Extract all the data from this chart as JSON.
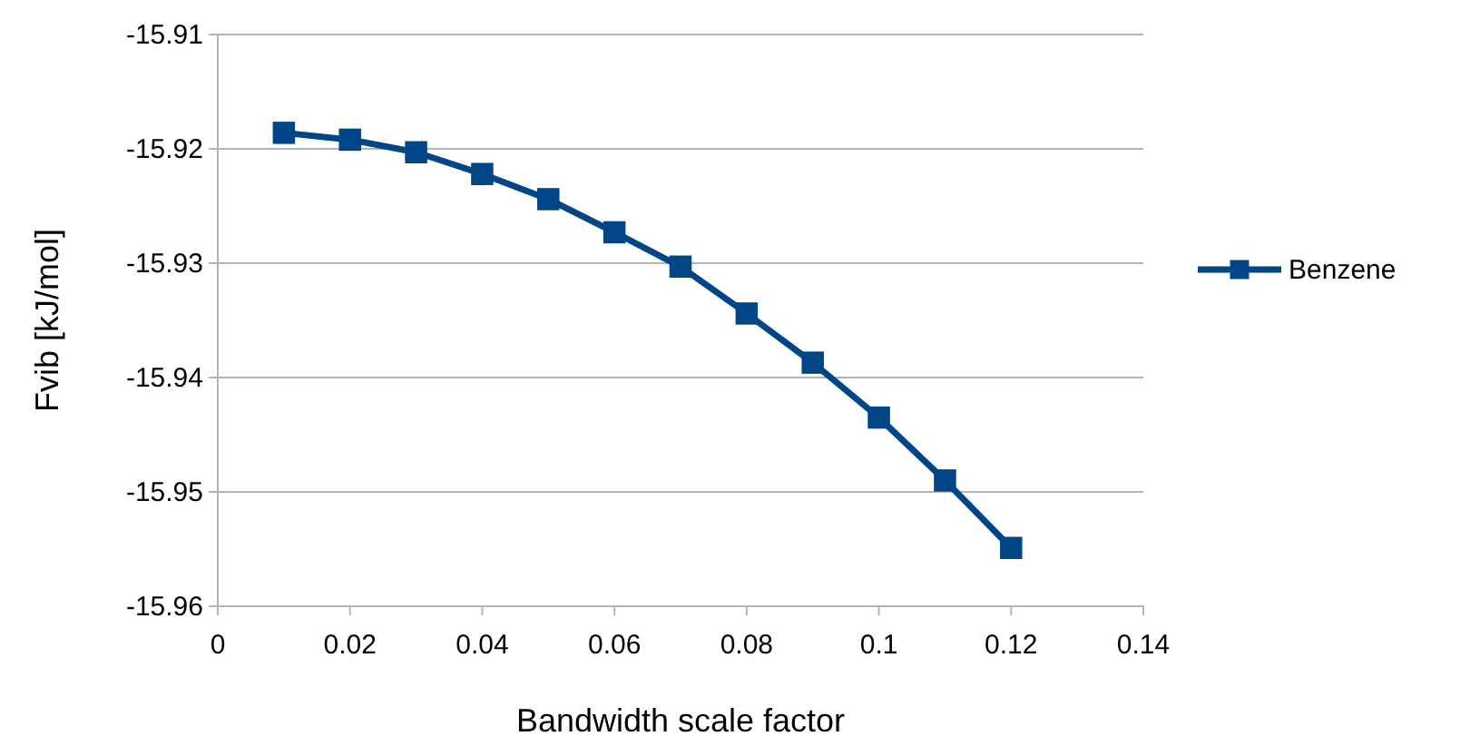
{
  "chart_data": {
    "type": "line",
    "xlabel": "Bandwidth scale factor",
    "ylabel": "Fvib [kJ/mol]",
    "x": [
      0.01,
      0.02,
      0.03,
      0.04,
      0.05,
      0.06,
      0.07,
      0.08,
      0.09,
      0.1,
      0.11,
      0.12
    ],
    "series": [
      {
        "name": "Benzene",
        "color": "#004586",
        "values": [
          -15.9186,
          -15.9192,
          -15.9203,
          -15.9222,
          -15.9244,
          -15.9273,
          -15.9303,
          -15.9344,
          -15.9387,
          -15.9435,
          -15.949,
          -15.9549
        ]
      }
    ],
    "xlim": [
      0,
      0.14
    ],
    "xticks": [
      0,
      0.02,
      0.04,
      0.06,
      0.08,
      0.1,
      0.12,
      0.14
    ],
    "ylim": [
      -15.96,
      -15.91
    ],
    "yticks": [
      -15.96,
      -15.95,
      -15.94,
      -15.93,
      -15.92,
      -15.91
    ],
    "grid": "y",
    "legend": "right",
    "marker": "square",
    "line_style": "solid"
  }
}
